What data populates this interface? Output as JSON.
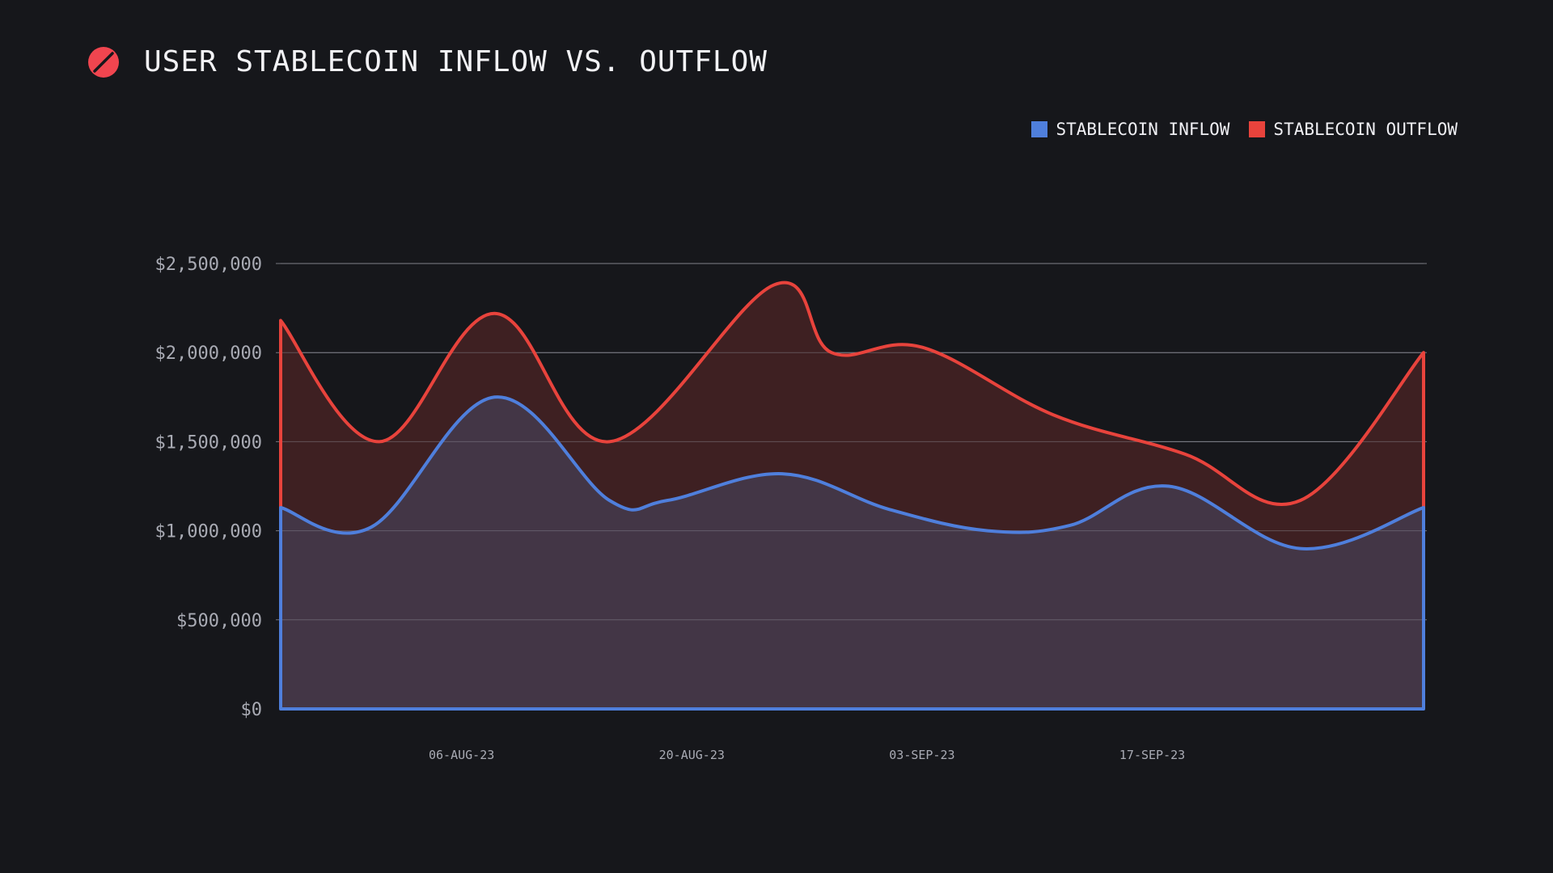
{
  "header": {
    "title": "USER STABLECOIN INFLOW VS. OUTFLOW",
    "logo_icon": "slashed-circle-logo-icon"
  },
  "colors": {
    "background": "#16171b",
    "inflow": "#4f7fdc",
    "outflow": "#e8433c",
    "inflow_fill": "#433646",
    "outflow_fill": "#3e2022",
    "grid": "#8e9098"
  },
  "legend": {
    "items": [
      {
        "label": "STABLECOIN INFLOW",
        "color": "#4f7fdc"
      },
      {
        "label": "STABLECOIN OUTFLOW",
        "color": "#e8433c"
      }
    ]
  },
  "chart_data": {
    "type": "area",
    "title": "USER STABLECOIN INFLOW VS. OUTFLOW",
    "xlabel": "",
    "ylabel": "",
    "ylim": [
      0,
      2500000
    ],
    "y_ticks": [
      0,
      500000,
      1000000,
      1500000,
      2000000,
      2500000
    ],
    "y_tick_labels": [
      "$0",
      "$500,000",
      "$1,000,000",
      "$1,500,000",
      "$2,000,000",
      "$2,500,000"
    ],
    "x_ticks": [
      {
        "x": 8,
        "label": "06-AUG-23"
      },
      {
        "x": 22,
        "label": "20-AUG-23"
      },
      {
        "x": 36,
        "label": "03-SEP-23"
      },
      {
        "x": 50,
        "label": "17-SEP-23"
      }
    ],
    "xlim": [
      -3,
      66.5
    ],
    "grid": true,
    "legend_position": "top-right",
    "series": [
      {
        "name": "STABLECOIN INFLOW",
        "color": "#4f7fdc",
        "points": [
          {
            "x": -3,
            "y": 1130000
          },
          {
            "x": 2.5,
            "y": 1020000
          },
          {
            "x": 10,
            "y": 1750000
          },
          {
            "x": 17,
            "y": 1170000
          },
          {
            "x": 20.5,
            "y": 1170000
          },
          {
            "x": 27.5,
            "y": 1320000
          },
          {
            "x": 34,
            "y": 1120000
          },
          {
            "x": 40,
            "y": 1000000
          },
          {
            "x": 45,
            "y": 1030000
          },
          {
            "x": 51,
            "y": 1250000
          },
          {
            "x": 59,
            "y": 900000
          },
          {
            "x": 66.5,
            "y": 1130000
          }
        ]
      },
      {
        "name": "STABLECOIN OUTFLOW",
        "color": "#e8433c",
        "points": [
          {
            "x": -3,
            "y": 2180000
          },
          {
            "x": 3,
            "y": 1500000
          },
          {
            "x": 10,
            "y": 2220000
          },
          {
            "x": 17,
            "y": 1500000
          },
          {
            "x": 27,
            "y": 2380000
          },
          {
            "x": 30.5,
            "y": 2000000
          },
          {
            "x": 36,
            "y": 2030000
          },
          {
            "x": 44,
            "y": 1650000
          },
          {
            "x": 52,
            "y": 1430000
          },
          {
            "x": 59,
            "y": 1170000
          },
          {
            "x": 66.5,
            "y": 2000000
          }
        ]
      }
    ]
  }
}
